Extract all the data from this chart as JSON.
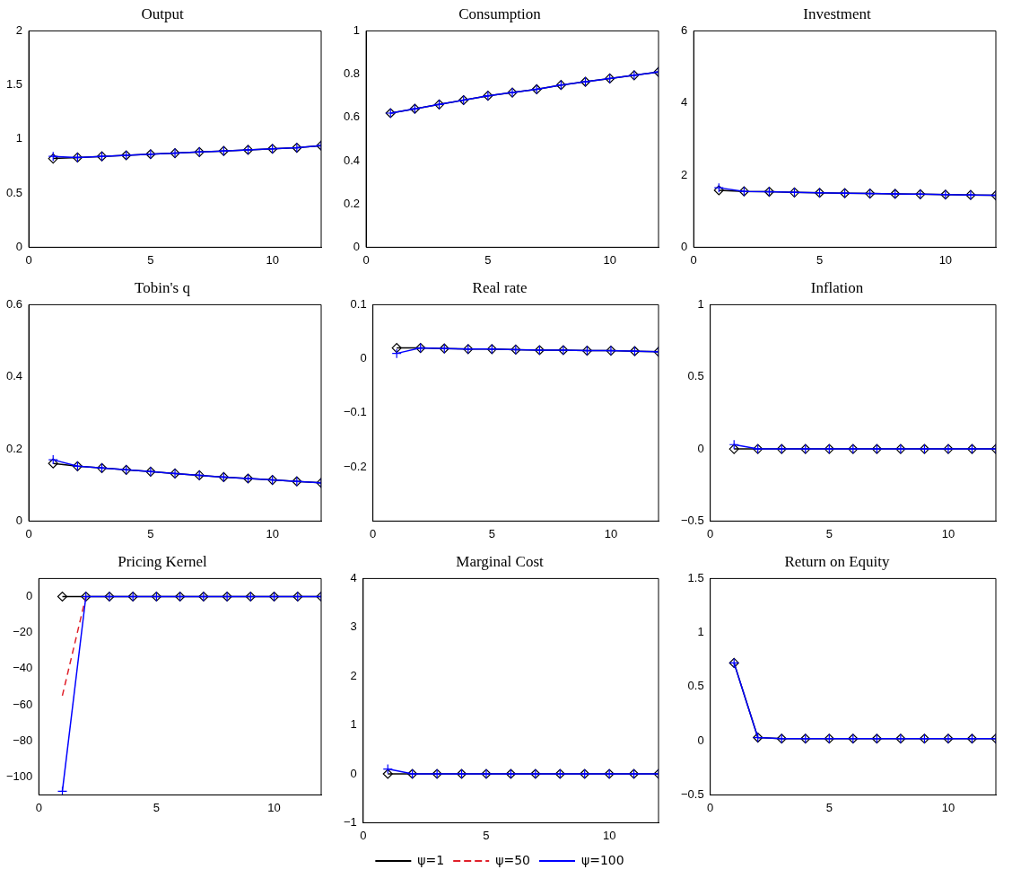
{
  "chart_data": [
    {
      "type": "line",
      "title": "Output",
      "x": [
        1,
        2,
        3,
        4,
        5,
        6,
        7,
        8,
        9,
        10,
        11,
        12
      ],
      "xlim": [
        0,
        12
      ],
      "xticks": [
        0,
        5,
        10
      ],
      "ylim": [
        0,
        2
      ],
      "yticks": [
        0,
        0.5,
        1,
        1.5,
        2
      ],
      "series": [
        {
          "color": "#000000",
          "marker": "diamond",
          "line_style": "solid",
          "values": [
            0.82,
            0.83,
            0.84,
            0.85,
            0.86,
            0.87,
            0.88,
            0.89,
            0.9,
            0.91,
            0.92,
            0.94
          ]
        },
        {
          "color": "#e0202a",
          "marker": "none",
          "line_style": "dashed",
          "values": [
            null,
            null,
            null,
            null,
            null,
            null,
            null,
            null,
            null,
            null,
            null,
            null
          ]
        },
        {
          "color": "#0000ff",
          "marker": "cross",
          "line_style": "solid",
          "values": [
            0.84,
            0.83,
            0.84,
            0.85,
            0.86,
            0.87,
            0.88,
            0.89,
            0.9,
            0.91,
            0.92,
            0.94
          ]
        }
      ]
    },
    {
      "type": "line",
      "title": "Consumption",
      "x": [
        1,
        2,
        3,
        4,
        5,
        6,
        7,
        8,
        9,
        10,
        11,
        12
      ],
      "xlim": [
        0,
        12
      ],
      "xticks": [
        0,
        5,
        10
      ],
      "ylim": [
        0,
        1
      ],
      "yticks": [
        0,
        0.2,
        0.4,
        0.6,
        0.8,
        1
      ],
      "series": [
        {
          "color": "#000000",
          "marker": "diamond",
          "line_style": "solid",
          "values": [
            0.62,
            0.64,
            0.66,
            0.68,
            0.7,
            0.715,
            0.73,
            0.75,
            0.765,
            0.78,
            0.795,
            0.81
          ]
        },
        {
          "color": "#e0202a",
          "marker": "none",
          "line_style": "dashed",
          "values": [
            null,
            null,
            null,
            null,
            null,
            null,
            null,
            null,
            null,
            null,
            null,
            null
          ]
        },
        {
          "color": "#0000ff",
          "marker": "cross",
          "line_style": "solid",
          "values": [
            0.62,
            0.64,
            0.66,
            0.68,
            0.7,
            0.715,
            0.73,
            0.75,
            0.765,
            0.78,
            0.795,
            0.81
          ]
        }
      ]
    },
    {
      "type": "line",
      "title": "Investment",
      "x": [
        1,
        2,
        3,
        4,
        5,
        6,
        7,
        8,
        9,
        10,
        11,
        12
      ],
      "xlim": [
        0,
        12
      ],
      "xticks": [
        0,
        5,
        10
      ],
      "ylim": [
        0,
        6
      ],
      "yticks": [
        0,
        2,
        4,
        6
      ],
      "series": [
        {
          "color": "#000000",
          "marker": "diamond",
          "line_style": "solid",
          "values": [
            1.58,
            1.55,
            1.54,
            1.52,
            1.51,
            1.5,
            1.49,
            1.48,
            1.47,
            1.46,
            1.45,
            1.44
          ]
        },
        {
          "color": "#e0202a",
          "marker": "none",
          "line_style": "dashed",
          "values": [
            null,
            null,
            null,
            null,
            null,
            null,
            null,
            null,
            null,
            null,
            null,
            null
          ]
        },
        {
          "color": "#0000ff",
          "marker": "cross",
          "line_style": "solid",
          "values": [
            1.65,
            1.55,
            1.54,
            1.52,
            1.51,
            1.5,
            1.49,
            1.48,
            1.47,
            1.46,
            1.45,
            1.44
          ]
        }
      ]
    },
    {
      "type": "line",
      "title": "Tobin's q",
      "x": [
        1,
        2,
        3,
        4,
        5,
        6,
        7,
        8,
        9,
        10,
        11,
        12
      ],
      "xlim": [
        0,
        12
      ],
      "xticks": [
        0,
        5,
        10
      ],
      "ylim": [
        0,
        0.6
      ],
      "yticks": [
        0,
        0.2,
        0.4,
        0.6
      ],
      "series": [
        {
          "color": "#000000",
          "marker": "diamond",
          "line_style": "solid",
          "values": [
            0.16,
            0.152,
            0.147,
            0.142,
            0.137,
            0.132,
            0.127,
            0.122,
            0.118,
            0.114,
            0.11,
            0.106
          ]
        },
        {
          "color": "#e0202a",
          "marker": "none",
          "line_style": "dashed",
          "values": [
            null,
            null,
            null,
            null,
            null,
            null,
            null,
            null,
            null,
            null,
            null,
            null
          ]
        },
        {
          "color": "#0000ff",
          "marker": "cross",
          "line_style": "solid",
          "values": [
            0.17,
            0.152,
            0.147,
            0.142,
            0.137,
            0.132,
            0.127,
            0.122,
            0.118,
            0.114,
            0.11,
            0.106
          ]
        }
      ]
    },
    {
      "type": "line",
      "title": "Real rate",
      "x": [
        1,
        2,
        3,
        4,
        5,
        6,
        7,
        8,
        9,
        10,
        11,
        12
      ],
      "xlim": [
        0,
        12
      ],
      "xticks": [
        0,
        5,
        10
      ],
      "ylim": [
        -0.3,
        0.1
      ],
      "yticks": [
        -0.2,
        -0.1,
        0,
        0.1
      ],
      "series": [
        {
          "color": "#000000",
          "marker": "diamond",
          "line_style": "solid",
          "values": [
            0.02,
            0.02,
            0.019,
            0.018,
            0.018,
            0.017,
            0.016,
            0.016,
            0.015,
            0.015,
            0.014,
            0.013
          ]
        },
        {
          "color": "#e0202a",
          "marker": "none",
          "line_style": "dashed",
          "values": [
            null,
            null,
            null,
            null,
            null,
            null,
            null,
            null,
            null,
            null,
            null,
            null
          ]
        },
        {
          "color": "#0000ff",
          "marker": "cross",
          "line_style": "solid",
          "values": [
            0.01,
            0.02,
            0.019,
            0.018,
            0.018,
            0.017,
            0.016,
            0.016,
            0.015,
            0.015,
            0.014,
            0.013
          ]
        }
      ]
    },
    {
      "type": "line",
      "title": "Inflation",
      "x": [
        1,
        2,
        3,
        4,
        5,
        6,
        7,
        8,
        9,
        10,
        11,
        12
      ],
      "xlim": [
        0,
        12
      ],
      "xticks": [
        0,
        5,
        10
      ],
      "ylim": [
        -0.5,
        1
      ],
      "yticks": [
        -0.5,
        0,
        0.5,
        1
      ],
      "series": [
        {
          "color": "#000000",
          "marker": "diamond",
          "line_style": "solid",
          "values": [
            0,
            0,
            0,
            0,
            0,
            0,
            0,
            0,
            0,
            0,
            0,
            0
          ]
        },
        {
          "color": "#e0202a",
          "marker": "none",
          "line_style": "dashed",
          "values": [
            null,
            null,
            null,
            null,
            null,
            null,
            null,
            null,
            null,
            null,
            null,
            null
          ]
        },
        {
          "color": "#0000ff",
          "marker": "cross",
          "line_style": "solid",
          "values": [
            0.03,
            0,
            0,
            0,
            0,
            0,
            0,
            0,
            0,
            0,
            0,
            0
          ]
        }
      ]
    },
    {
      "type": "line",
      "title": "Pricing Kernel",
      "x": [
        1,
        2,
        3,
        4,
        5,
        6,
        7,
        8,
        9,
        10,
        11,
        12
      ],
      "xlim": [
        0,
        12
      ],
      "xticks": [
        0,
        5,
        10
      ],
      "ylim": [
        -110,
        10
      ],
      "yticks": [
        -100,
        -80,
        -60,
        -40,
        -20,
        0
      ],
      "series": [
        {
          "color": "#000000",
          "marker": "diamond",
          "line_style": "solid",
          "values": [
            0,
            0,
            0,
            0,
            0,
            0,
            0,
            0,
            0,
            0,
            0,
            0
          ]
        },
        {
          "color": "#e0202a",
          "marker": "none",
          "line_style": "dashed",
          "values": [
            -55,
            0,
            null,
            null,
            null,
            null,
            null,
            null,
            null,
            null,
            null,
            null
          ]
        },
        {
          "color": "#0000ff",
          "marker": "cross",
          "line_style": "solid",
          "values": [
            -108,
            0,
            0,
            0,
            0,
            0,
            0,
            0,
            0,
            0,
            0,
            0
          ]
        }
      ]
    },
    {
      "type": "line",
      "title": "Marginal Cost",
      "x": [
        1,
        2,
        3,
        4,
        5,
        6,
        7,
        8,
        9,
        10,
        11,
        12
      ],
      "xlim": [
        0,
        12
      ],
      "xticks": [
        0,
        5,
        10
      ],
      "ylim": [
        -1,
        4
      ],
      "yticks": [
        -1,
        0,
        1,
        2,
        3,
        4
      ],
      "legend": "bottom",
      "series": [
        {
          "name": "ψ=1",
          "color": "#000000",
          "marker": "diamond",
          "line_style": "solid",
          "values": [
            0,
            0,
            0,
            0,
            0,
            0,
            0,
            0,
            0,
            0,
            0,
            0
          ]
        },
        {
          "name": "ψ=50",
          "color": "#e0202a",
          "marker": "none",
          "line_style": "dashed",
          "values": [
            null,
            null,
            null,
            null,
            null,
            null,
            null,
            null,
            null,
            null,
            null,
            null
          ]
        },
        {
          "name": "ψ=100",
          "color": "#0000ff",
          "marker": "cross",
          "line_style": "solid",
          "values": [
            0.1,
            0,
            0,
            0,
            0,
            0,
            0,
            0,
            0,
            0,
            0,
            0
          ]
        }
      ]
    },
    {
      "type": "line",
      "title": "Return on Equity",
      "x": [
        1,
        2,
        3,
        4,
        5,
        6,
        7,
        8,
        9,
        10,
        11,
        12
      ],
      "xlim": [
        0,
        12
      ],
      "xticks": [
        0,
        5,
        10
      ],
      "ylim": [
        -0.5,
        1.5
      ],
      "yticks": [
        -0.5,
        0,
        0.5,
        1,
        1.5
      ],
      "series": [
        {
          "color": "#000000",
          "marker": "diamond",
          "line_style": "solid",
          "values": [
            0.72,
            0.03,
            0.02,
            0.02,
            0.02,
            0.02,
            0.02,
            0.02,
            0.02,
            0.02,
            0.02,
            0.02
          ]
        },
        {
          "color": "#e0202a",
          "marker": "none",
          "line_style": "dashed",
          "values": [
            null,
            null,
            null,
            null,
            null,
            null,
            null,
            null,
            null,
            null,
            null,
            null
          ]
        },
        {
          "color": "#0000ff",
          "marker": "cross",
          "line_style": "solid",
          "values": [
            0.72,
            0.03,
            0.02,
            0.02,
            0.02,
            0.02,
            0.02,
            0.02,
            0.02,
            0.02,
            0.02,
            0.02
          ]
        }
      ]
    }
  ]
}
